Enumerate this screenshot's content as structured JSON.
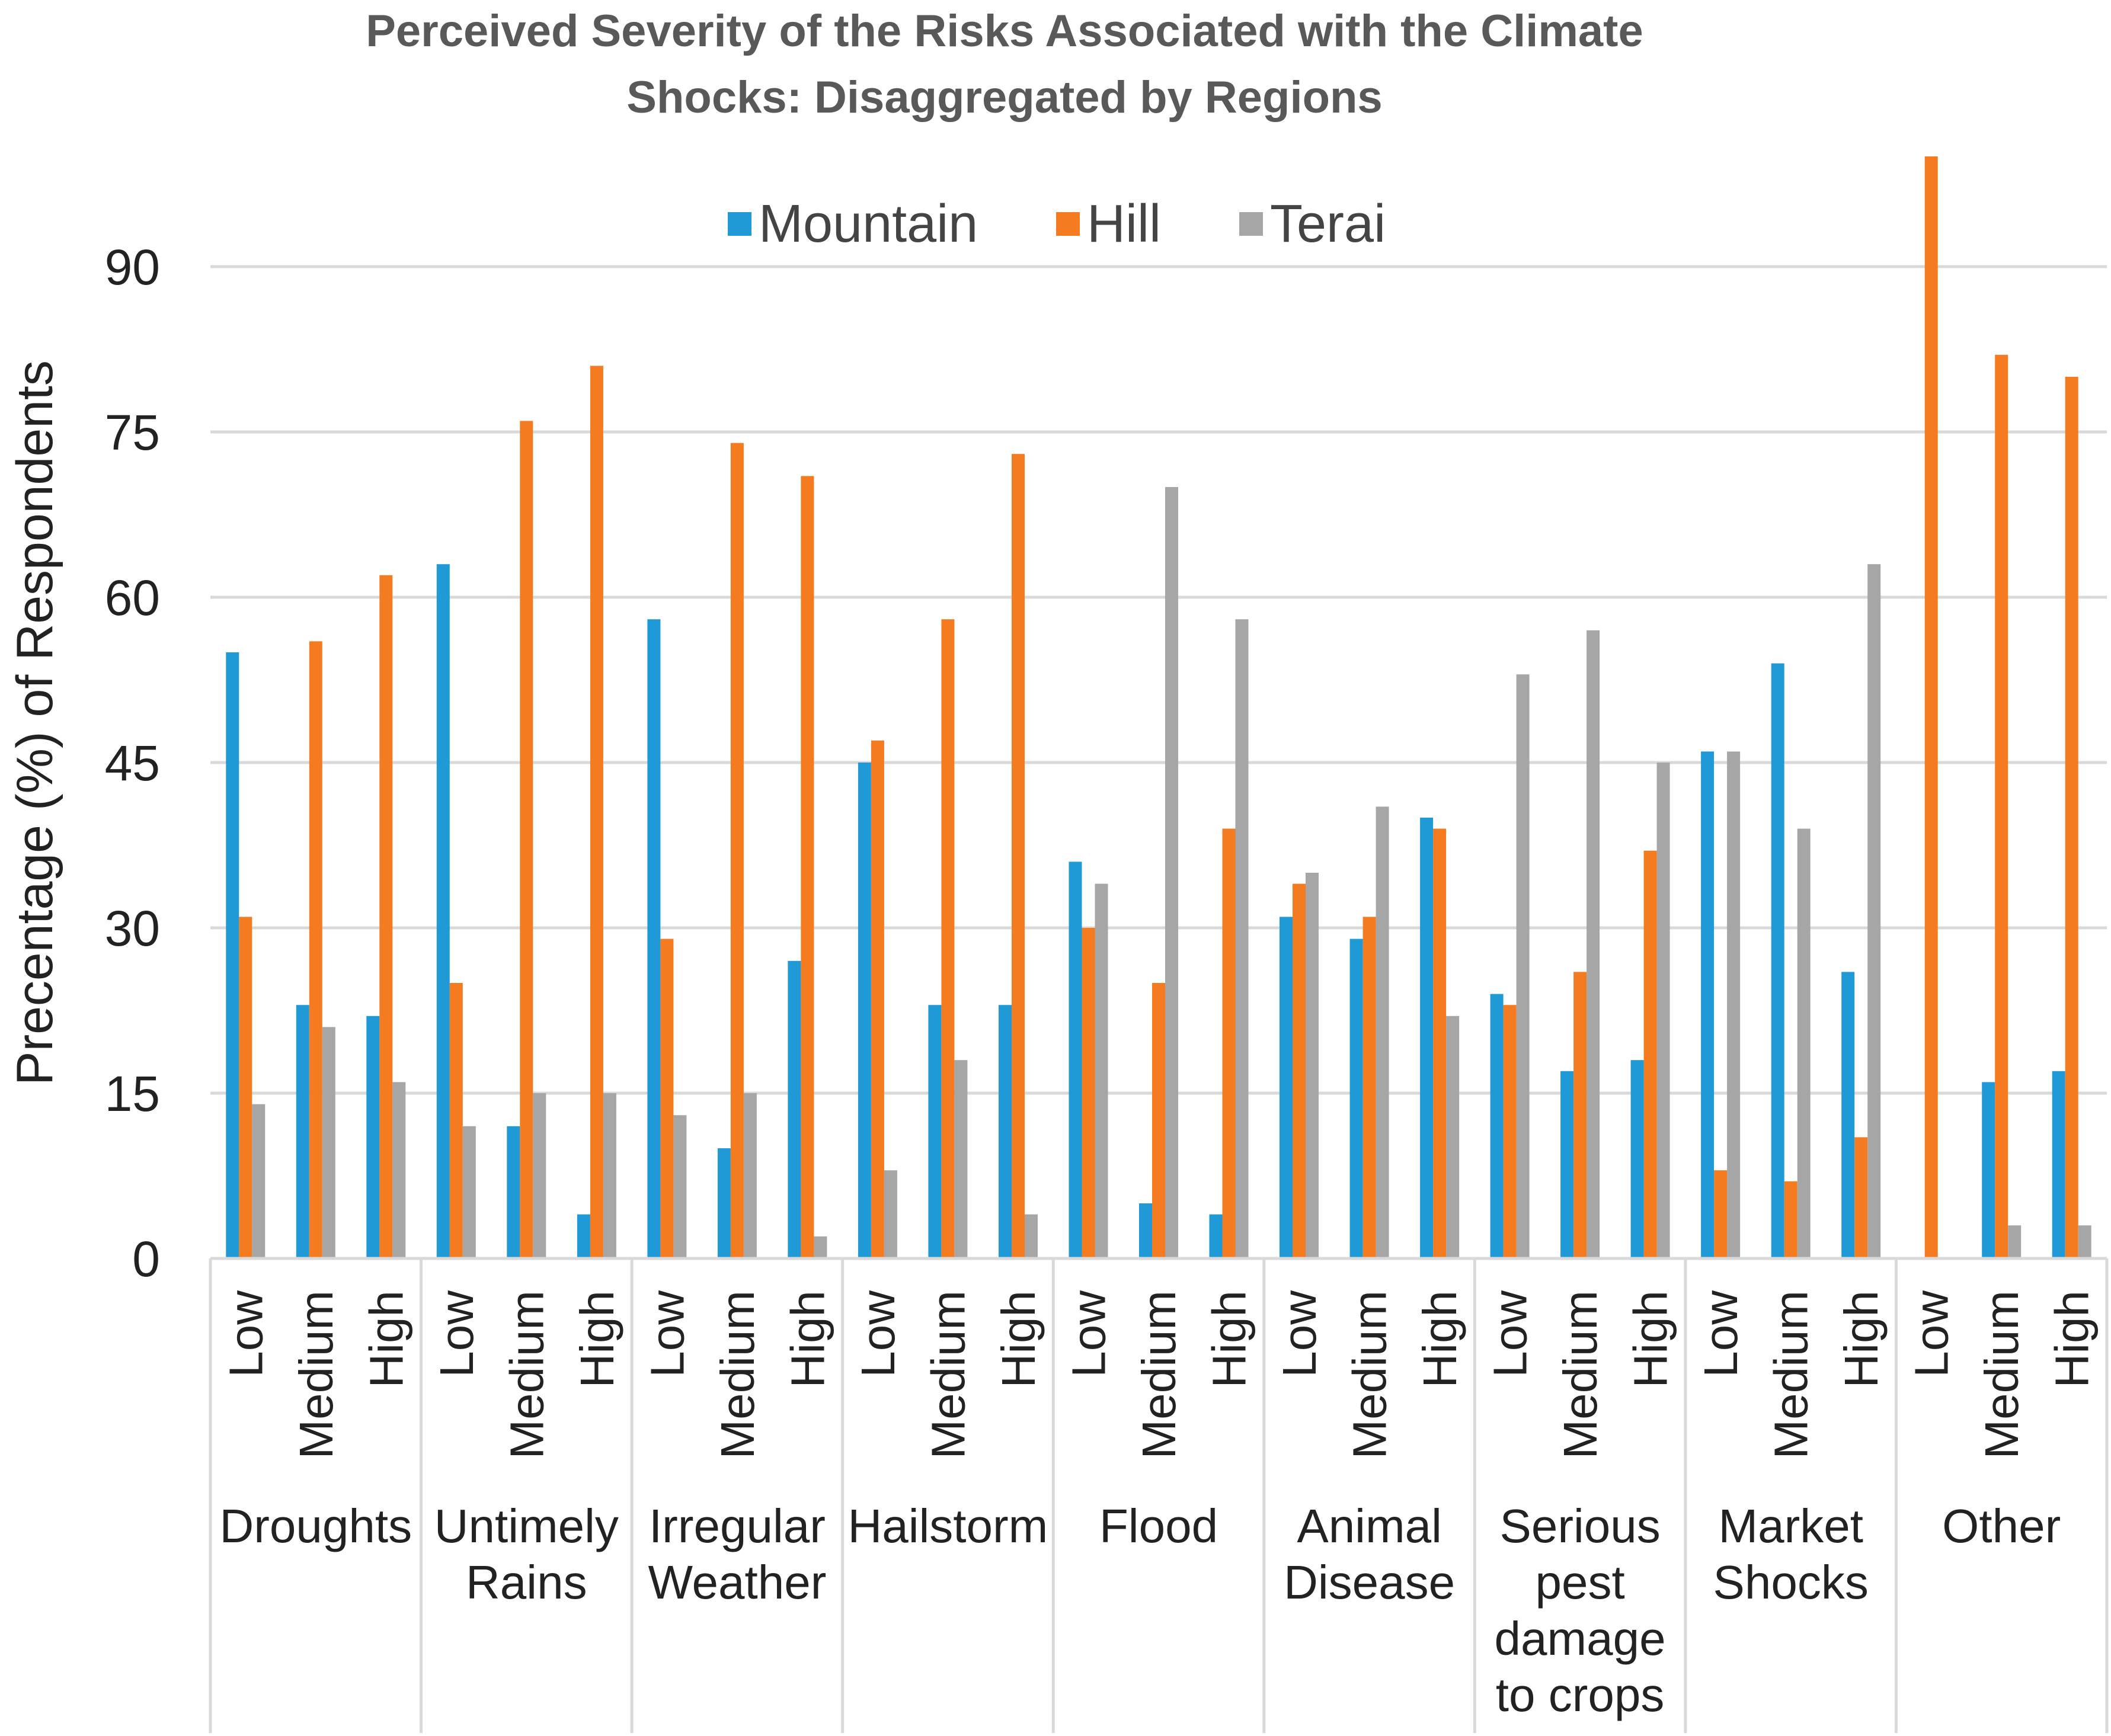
{
  "chart_data": {
    "type": "bar",
    "title": "Perceived Severity of the Risks Associated with the Climate Shocks: Disaggregated by Regions",
    "title_lines": [
      "Perceived Severity of the Risks Associated with the Climate",
      "Shocks: Disaggregated by Regions"
    ],
    "ylabel": "Precentage (%) of Respondents",
    "xlabel": "",
    "ylim": [
      0,
      100
    ],
    "yticks": [
      0,
      15,
      30,
      45,
      60,
      75,
      90
    ],
    "grid": true,
    "legend_position": "top",
    "levels": [
      "Low",
      "Medium",
      "High"
    ],
    "groups": [
      {
        "name": "Droughts",
        "label_lines": [
          "Droughts"
        ]
      },
      {
        "name": "Untimely Rains",
        "label_lines": [
          "Untimely",
          "Rains"
        ]
      },
      {
        "name": "Irregular Weather",
        "label_lines": [
          "Irregular",
          "Weather"
        ]
      },
      {
        "name": "Hailstorm",
        "label_lines": [
          "Hailstorm"
        ]
      },
      {
        "name": "Flood",
        "label_lines": [
          "Flood"
        ]
      },
      {
        "name": "Animal Disease",
        "label_lines": [
          "Animal",
          "Disease"
        ]
      },
      {
        "name": "Serious pest damage to crops",
        "label_lines": [
          "Serious",
          "pest",
          "damage",
          "to crops"
        ]
      },
      {
        "name": "Market Shocks",
        "label_lines": [
          "Market",
          "Shocks"
        ]
      },
      {
        "name": "Other",
        "label_lines": [
          "Other"
        ]
      }
    ],
    "series": [
      {
        "name": "Mountain",
        "color": "#1f9ad6",
        "values": [
          55,
          23,
          22,
          63,
          12,
          4,
          58,
          10,
          27,
          45,
          23,
          23,
          36,
          5,
          4,
          31,
          29,
          40,
          24,
          17,
          18,
          46,
          54,
          26,
          0,
          16,
          17
        ]
      },
      {
        "name": "Hill",
        "color": "#f47b20",
        "values": [
          31,
          56,
          62,
          25,
          76,
          81,
          29,
          74,
          71,
          47,
          58,
          73,
          30,
          25,
          39,
          34,
          31,
          39,
          23,
          26,
          37,
          8,
          7,
          11,
          100,
          82,
          80
        ]
      },
      {
        "name": "Terai",
        "color": "#a6a6a6",
        "values": [
          14,
          21,
          16,
          12,
          15,
          15,
          13,
          15,
          2,
          8,
          18,
          4,
          34,
          70,
          58,
          35,
          41,
          22,
          53,
          57,
          45,
          46,
          39,
          63,
          0,
          3,
          3
        ]
      }
    ]
  }
}
